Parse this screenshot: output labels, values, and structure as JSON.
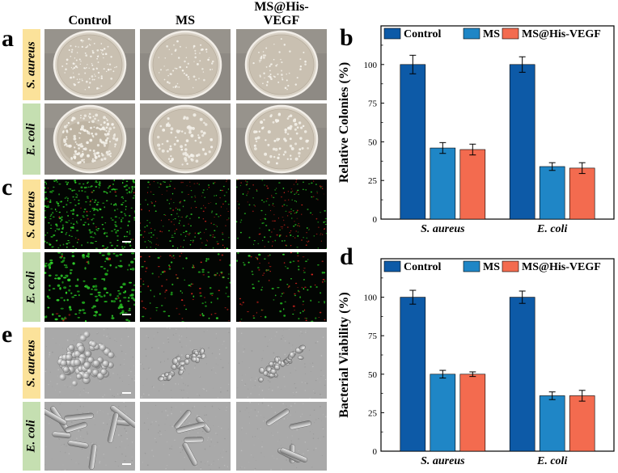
{
  "panels": {
    "a": "a",
    "b": "b",
    "c": "c",
    "d": "d",
    "e": "e"
  },
  "columns": [
    "Control",
    "MS",
    "MS@His-\nVEGF"
  ],
  "rows": [
    "S. aureus",
    "E. coli"
  ],
  "colors": {
    "control": "#0d5aa7",
    "ms": "#1f86c6",
    "ms_his_vegf": "#f36b4f",
    "label_yellow": "#fbe29a",
    "label_green": "#c5dfb1"
  },
  "chart_data": [
    {
      "type": "bar",
      "panel": "b",
      "categories": [
        "S. aureus",
        "E. coli"
      ],
      "series": [
        {
          "name": "Control",
          "values": [
            100,
            100
          ],
          "errors": [
            6,
            5
          ]
        },
        {
          "name": "MS",
          "values": [
            46,
            34
          ],
          "errors": [
            3.5,
            2.5
          ]
        },
        {
          "name": "MS@His-VEGF",
          "values": [
            45,
            33
          ],
          "errors": [
            3.5,
            3.5
          ]
        }
      ],
      "ylabel": "Relative Colonies (%)",
      "ylim": [
        0,
        125
      ],
      "yticks": [
        0,
        25,
        50,
        75,
        100
      ],
      "legend": "top"
    },
    {
      "type": "bar",
      "panel": "d",
      "categories": [
        "S. aureus",
        "E. coli"
      ],
      "series": [
        {
          "name": "Control",
          "values": [
            100,
            100
          ],
          "errors": [
            4.5,
            4
          ]
        },
        {
          "name": "MS",
          "values": [
            50,
            36
          ],
          "errors": [
            2.5,
            2.5
          ]
        },
        {
          "name": "MS@His-VEGF",
          "values": [
            50,
            36
          ],
          "errors": [
            1.5,
            3.5
          ]
        }
      ],
      "ylabel": "Bacterial Viability (%)",
      "ylim": [
        0,
        125
      ],
      "yticks": [
        0,
        25,
        50,
        75,
        100
      ],
      "legend": "top"
    }
  ]
}
